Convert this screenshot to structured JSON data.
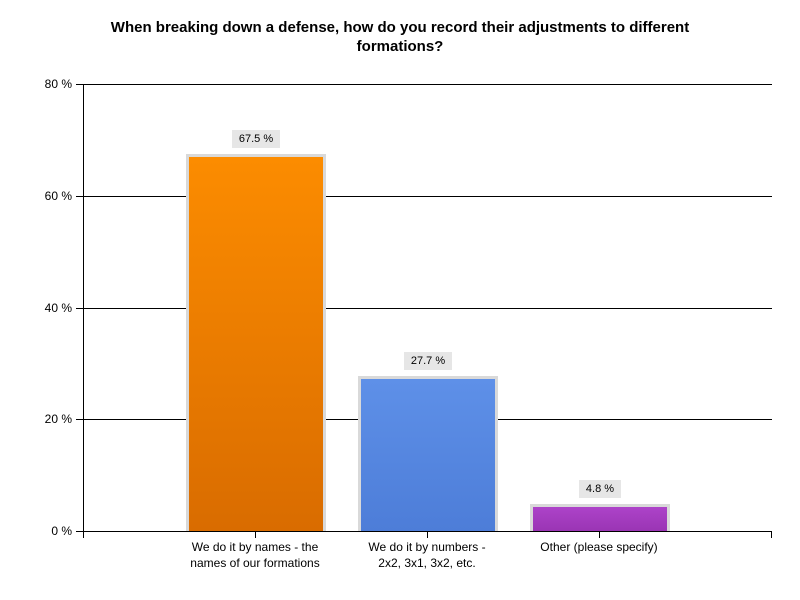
{
  "title": "When breaking down a defense, how do you record their adjustments to different formations?",
  "chart_data": {
    "type": "bar",
    "title": "When breaking down a defense, how do you record their adjustments to different formations?",
    "categories": [
      "We do it by names - the names of our formations",
      "We do it by numbers - 2x2, 3x1, 3x2, etc.",
      "Other (please specify)"
    ],
    "category_lines": [
      [
        "We do it by names - the",
        "names of our formations"
      ],
      [
        "We do it by numbers -",
        "2x2, 3x1, 3x2, etc."
      ],
      [
        "Other (please specify)",
        ""
      ]
    ],
    "values": [
      67.5,
      27.7,
      4.8
    ],
    "value_labels": [
      "67.5 %",
      "27.7 %",
      "4.8 %"
    ],
    "xlabel": "",
    "ylabel": "",
    "ylim": [
      0,
      80
    ],
    "ytick_interval": 20,
    "yticks": [
      "80 %",
      "60 %",
      "40 %",
      "20 %",
      "0 %"
    ],
    "grid": true,
    "legend": false,
    "colors": {
      "bar_top": [
        "#fc8c00",
        "#5e90e8",
        "#ad43c9"
      ],
      "bar_bottom": [
        "#d96c00",
        "#4d7dd8",
        "#9a35b4"
      ],
      "bar_border": "#d9d9d9",
      "value_label_bg": "#e6e6e6",
      "axis": "#000000",
      "background": "#ffffff"
    }
  }
}
